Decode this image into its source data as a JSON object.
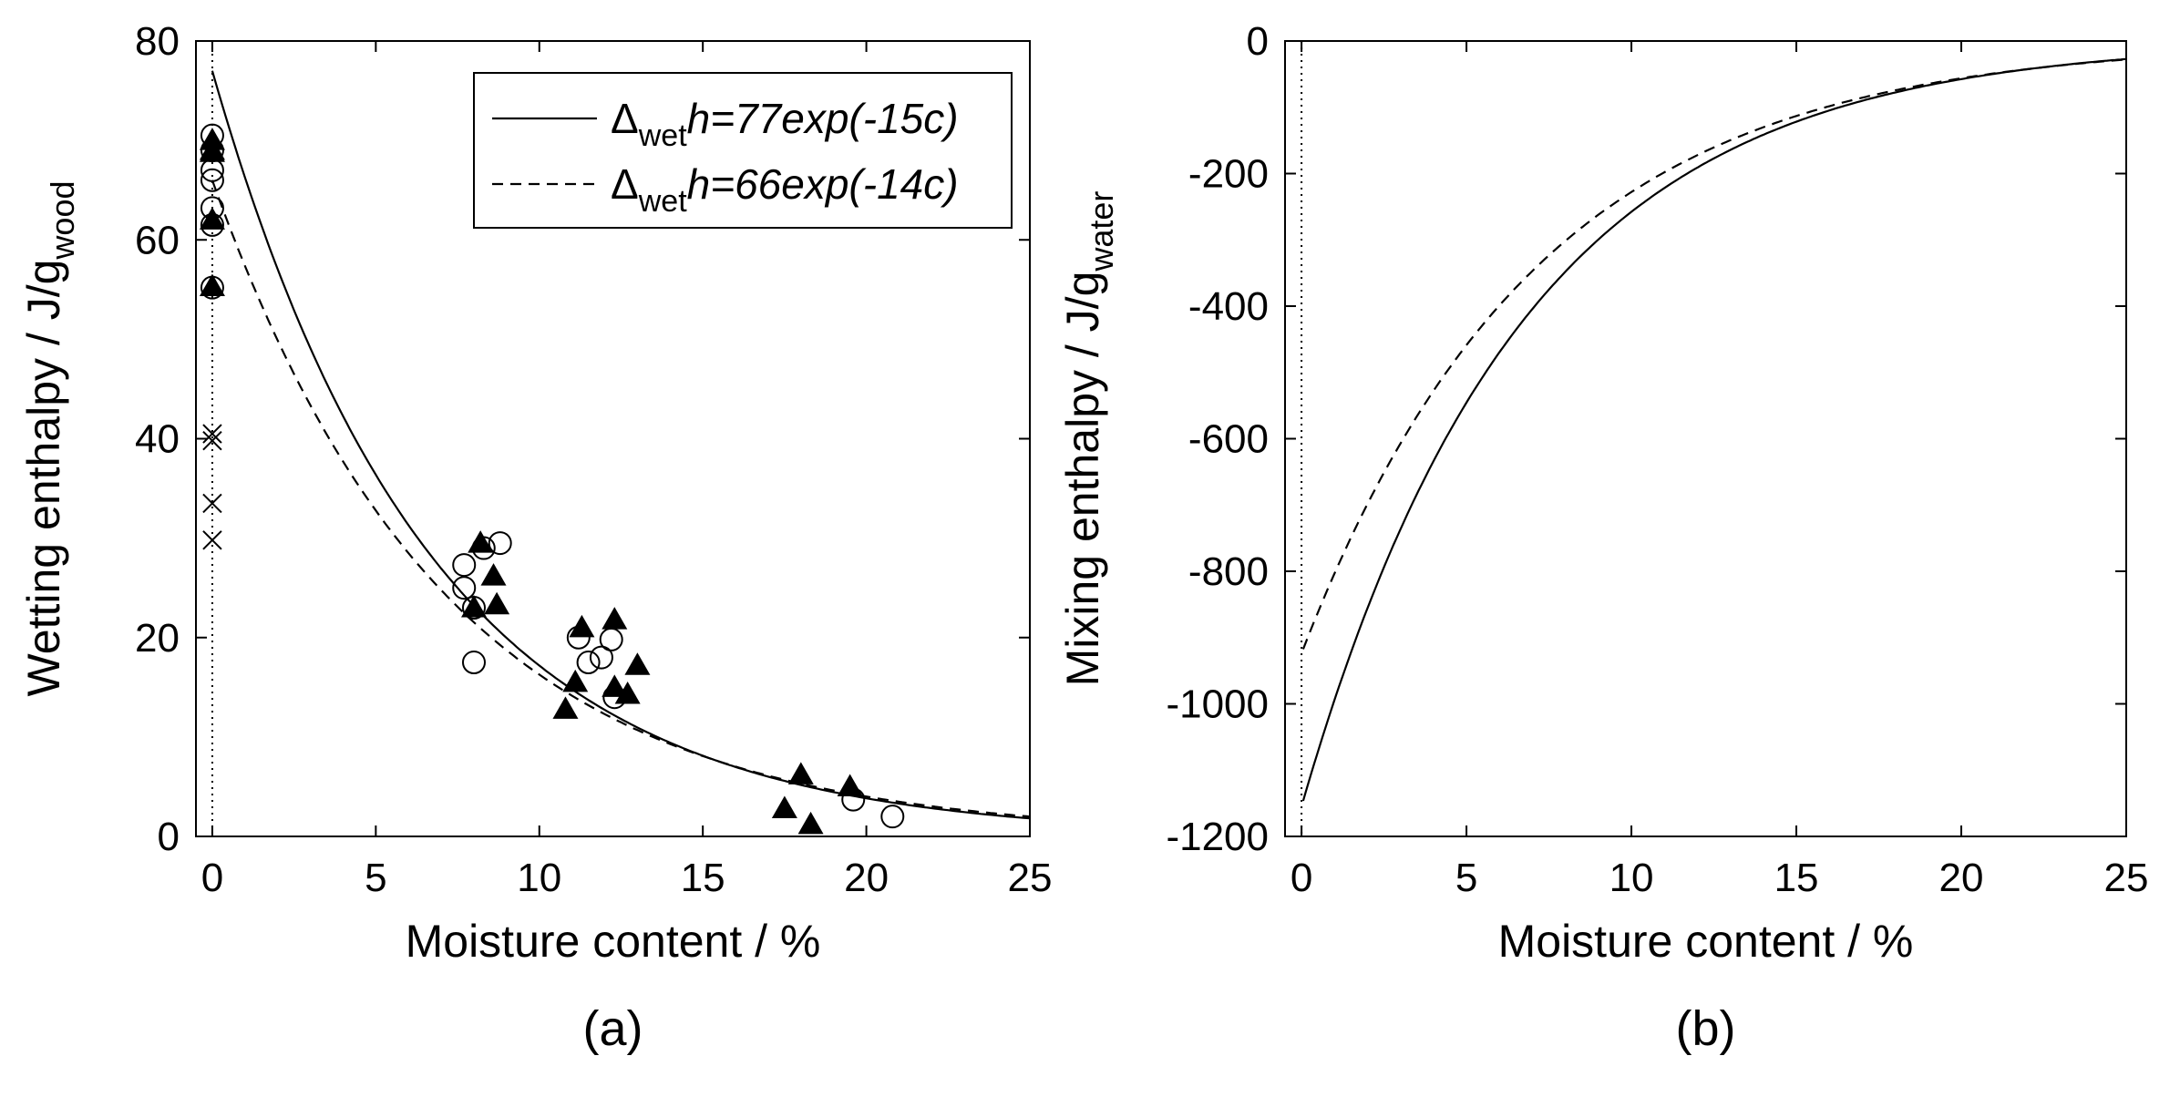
{
  "chart_data": [
    {
      "type": "scatter",
      "panel_label": "(a)",
      "xlabel": "Moisture content / %",
      "ylabel": "Wetting enthalpy / J/g",
      "ylabel_sub": "wood",
      "xlim": [
        -0.5,
        25
      ],
      "ylim": [
        0,
        80
      ],
      "xticks": [
        0,
        5,
        10,
        15,
        20,
        25
      ],
      "yticks": [
        0,
        20,
        40,
        60,
        80
      ],
      "grid": false,
      "legend_position": "top-right",
      "reference_line_x": 0,
      "series": [
        {
          "name": "fit_solid",
          "kind": "line",
          "dash": "solid",
          "legend_prefix": "Δ",
          "legend_sub": "wet",
          "legend_suffix": "h=77exp(-15c)",
          "A": 77,
          "k": -15
        },
        {
          "name": "fit_dashed",
          "kind": "line",
          "dash": "dashed",
          "legend_prefix": "Δ",
          "legend_sub": "wet",
          "legend_suffix": "h=66exp(-14c)",
          "A": 66,
          "k": -14
        },
        {
          "name": "open_circles",
          "kind": "marker",
          "marker": "circle",
          "points": [
            [
              0,
              70.5
            ],
            [
              0,
              69
            ],
            [
              0,
              67
            ],
            [
              0,
              66
            ],
            [
              0,
              63.2
            ],
            [
              0,
              61.5
            ],
            [
              0,
              55.2
            ],
            [
              7.7,
              27.3
            ],
            [
              7.7,
              25
            ],
            [
              8,
              23
            ],
            [
              8,
              17.5
            ],
            [
              8.3,
              29
            ],
            [
              8.8,
              29.5
            ],
            [
              11.2,
              20
            ],
            [
              11.5,
              17.5
            ],
            [
              11.9,
              18
            ],
            [
              12.2,
              19.8
            ],
            [
              12.3,
              14
            ],
            [
              19.6,
              3.7
            ],
            [
              20.8,
              2
            ]
          ]
        },
        {
          "name": "filled_triangles",
          "kind": "marker",
          "marker": "triangle",
          "points": [
            [
              0,
              70
            ],
            [
              0,
              69
            ],
            [
              0,
              68.8
            ],
            [
              0,
              62
            ],
            [
              0,
              55.3
            ],
            [
              8,
              23
            ],
            [
              8.2,
              29.5
            ],
            [
              8.6,
              26.2
            ],
            [
              8.7,
              23.3
            ],
            [
              10.8,
              12.8
            ],
            [
              11.1,
              15.5
            ],
            [
              11.3,
              21
            ],
            [
              12.3,
              21.8
            ],
            [
              12.3,
              15
            ],
            [
              12.7,
              14.3
            ],
            [
              13,
              17.2
            ],
            [
              17.5,
              2.8
            ],
            [
              18,
              6.2
            ],
            [
              18.3,
              1.2
            ],
            [
              19.5,
              5
            ]
          ]
        },
        {
          "name": "crosses",
          "kind": "marker",
          "marker": "x",
          "points": [
            [
              0,
              40.5
            ],
            [
              0,
              39.8
            ],
            [
              0,
              33.5
            ],
            [
              0,
              29.8
            ]
          ]
        }
      ]
    },
    {
      "type": "line",
      "panel_label": "(b)",
      "xlabel": "Moisture content / %",
      "ylabel": "Mixing enthalpy / J/g",
      "ylabel_sub": "water",
      "xlim": [
        -0.5,
        25
      ],
      "ylim": [
        -1200,
        0
      ],
      "xticks": [
        0,
        5,
        10,
        15,
        20,
        25
      ],
      "yticks": [
        0,
        -200,
        -400,
        -600,
        -800,
        -1000,
        -1200
      ],
      "grid": false,
      "reference_line_x": 0,
      "series": [
        {
          "name": "derivative_solid",
          "dash": "solid",
          "A": 77,
          "k": -15,
          "x_start": 0.05
        },
        {
          "name": "derivative_dashed",
          "dash": "dashed",
          "A": 66,
          "k": -14,
          "x_start": 0.05
        }
      ]
    }
  ]
}
